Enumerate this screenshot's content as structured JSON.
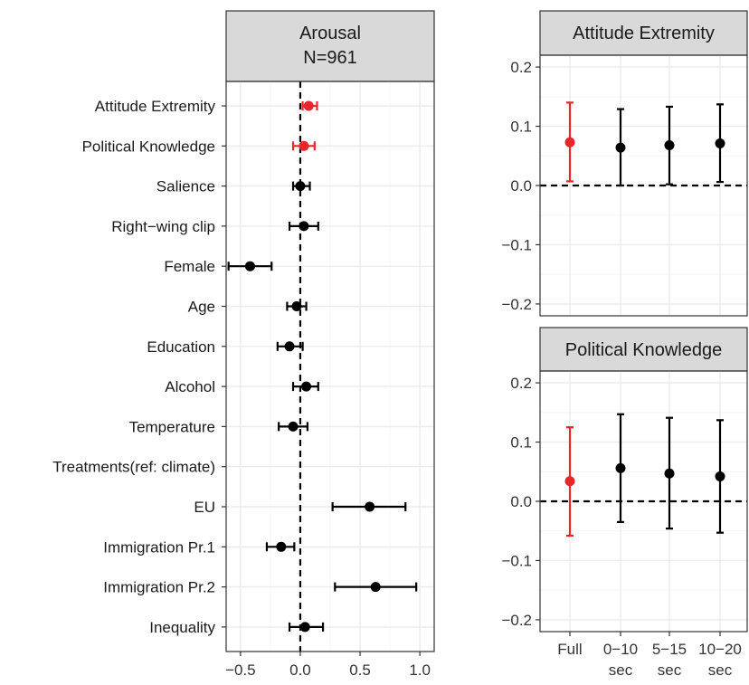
{
  "colors": {
    "highlight": "#e8262b",
    "default": "#000000",
    "panel_border": "#333333",
    "strip_fill": "#d9d9d9",
    "grid_major": "#ebebeb",
    "grid_minor": "#f5f5f5"
  },
  "chart_data": [
    {
      "type": "scatter",
      "subtype": "coefficient-plot-horizontal",
      "strip": [
        "Arousal",
        "N=961"
      ],
      "xlabel": "",
      "ylabel": "",
      "xlim": [
        -0.62,
        1.12
      ],
      "xticks": [
        -0.5,
        0.0,
        0.5,
        1.0
      ],
      "xtick_labels": [
        "−0.5",
        "0.0",
        "0.5",
        "1.0"
      ],
      "grid": true,
      "reference_line": 0,
      "categories": [
        "Attitude Extremity",
        "Political Knowledge",
        "Salience",
        "Right−wing clip",
        "Female",
        "Age",
        "Education",
        "Alcohol",
        "Temperature",
        "Treatments(ref: climate)",
        "EU",
        "Immigration Pr.1",
        "Immigration Pr.2",
        "Inequality"
      ],
      "estimates": [
        {
          "category": "Attitude Extremity",
          "value": 0.07,
          "lo": 0.02,
          "hi": 0.14,
          "highlight": true
        },
        {
          "category": "Political Knowledge",
          "value": 0.03,
          "lo": -0.06,
          "hi": 0.12,
          "highlight": true
        },
        {
          "category": "Salience",
          "value": 0.0,
          "lo": -0.06,
          "hi": 0.08,
          "highlight": false
        },
        {
          "category": "Right−wing clip",
          "value": 0.03,
          "lo": -0.09,
          "hi": 0.15,
          "highlight": false
        },
        {
          "category": "Female",
          "value": -0.42,
          "lo": -0.6,
          "hi": -0.24,
          "highlight": false
        },
        {
          "category": "Age",
          "value": -0.03,
          "lo": -0.11,
          "hi": 0.05,
          "highlight": false
        },
        {
          "category": "Education",
          "value": -0.09,
          "lo": -0.19,
          "hi": 0.02,
          "highlight": false
        },
        {
          "category": "Alcohol",
          "value": 0.05,
          "lo": -0.06,
          "hi": 0.15,
          "highlight": false
        },
        {
          "category": "Temperature",
          "value": -0.06,
          "lo": -0.18,
          "hi": 0.06,
          "highlight": false
        },
        {
          "category": "EU",
          "value": 0.58,
          "lo": 0.27,
          "hi": 0.88,
          "highlight": false
        },
        {
          "category": "Immigration Pr.1",
          "value": -0.16,
          "lo": -0.28,
          "hi": -0.05,
          "highlight": false
        },
        {
          "category": "Immigration Pr.2",
          "value": 0.63,
          "lo": 0.29,
          "hi": 0.97,
          "highlight": false
        },
        {
          "category": "Inequality",
          "value": 0.04,
          "lo": -0.09,
          "hi": 0.19,
          "highlight": false
        }
      ]
    },
    {
      "type": "scatter",
      "subtype": "coefficient-plot-vertical",
      "strip": [
        "Attitude Extremity"
      ],
      "xlabel": "",
      "ylabel": "",
      "ylim": [
        -0.22,
        0.22
      ],
      "yticks": [
        -0.2,
        -0.1,
        0.0,
        0.1,
        0.2
      ],
      "ytick_labels": [
        "−0.2",
        "−0.1",
        "0.0",
        "0.1",
        "0.2"
      ],
      "grid": true,
      "reference_line": 0,
      "categories": [
        "Full",
        "0−10 sec",
        "5−15 sec",
        "10−20 sec"
      ],
      "estimates": [
        {
          "category": "Full",
          "value": 0.073,
          "lo": 0.007,
          "hi": 0.14,
          "highlight": true
        },
        {
          "category": "0−10 sec",
          "value": 0.064,
          "lo": 0.0,
          "hi": 0.129,
          "highlight": false
        },
        {
          "category": "5−15 sec",
          "value": 0.068,
          "lo": 0.002,
          "hi": 0.133,
          "highlight": false
        },
        {
          "category": "10−20 sec",
          "value": 0.071,
          "lo": 0.006,
          "hi": 0.137,
          "highlight": false
        }
      ]
    },
    {
      "type": "scatter",
      "subtype": "coefficient-plot-vertical",
      "strip": [
        "Political Knowledge"
      ],
      "xlabel": "",
      "ylabel": "",
      "ylim": [
        -0.22,
        0.22
      ],
      "yticks": [
        -0.2,
        -0.1,
        0.0,
        0.1,
        0.2
      ],
      "ytick_labels": [
        "−0.2",
        "−0.1",
        "0.0",
        "0.1",
        "0.2"
      ],
      "grid": true,
      "reference_line": 0,
      "categories": [
        "Full",
        "0−10 sec",
        "5−15 sec",
        "10−20 sec"
      ],
      "category_label_lines": [
        [
          "Full"
        ],
        [
          "0−10",
          "sec"
        ],
        [
          "5−15",
          "sec"
        ],
        [
          "10−20",
          "sec"
        ]
      ],
      "estimates": [
        {
          "category": "Full",
          "value": 0.034,
          "lo": -0.058,
          "hi": 0.125,
          "highlight": true
        },
        {
          "category": "0−10 sec",
          "value": 0.056,
          "lo": -0.035,
          "hi": 0.147,
          "highlight": false
        },
        {
          "category": "5−15 sec",
          "value": 0.047,
          "lo": -0.046,
          "hi": 0.141,
          "highlight": false
        },
        {
          "category": "10−20 sec",
          "value": 0.042,
          "lo": -0.053,
          "hi": 0.137,
          "highlight": false
        }
      ]
    }
  ]
}
